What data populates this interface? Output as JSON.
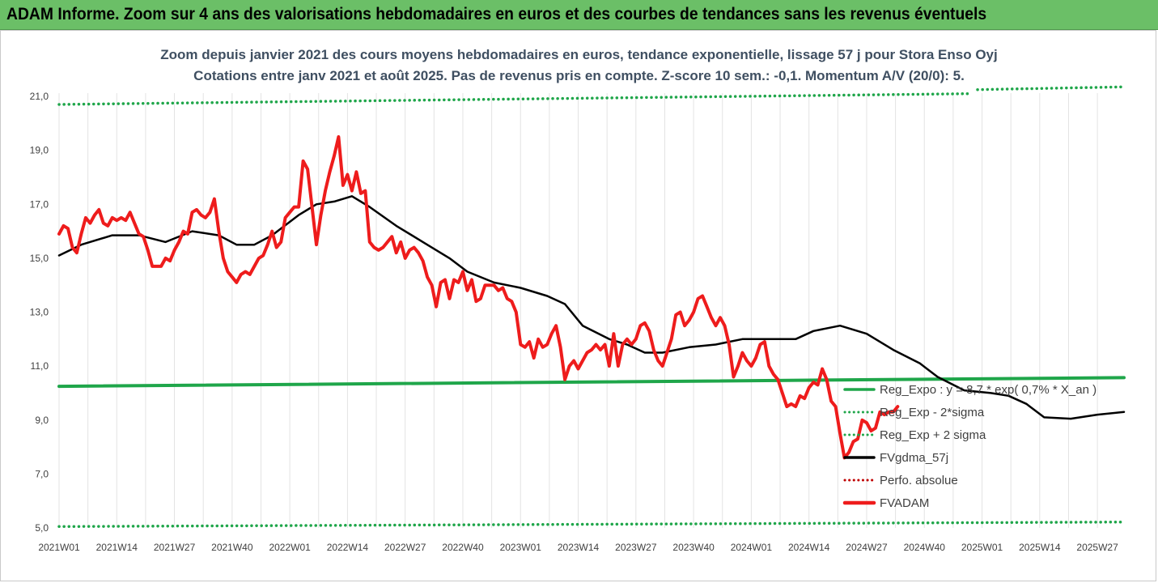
{
  "banner": {
    "title": "ADAM Informe. Zoom sur 4 ans des valorisations hebdomadaires en euros et des courbes de tendances sans les revenus éventuels"
  },
  "chart_data": {
    "type": "line",
    "title": "Zoom depuis janvier 2021 des cours moyens hebdomadaires en euros, tendance exponentielle, lissage 57 j pour Stora Enso Oyj",
    "subtitle": "Cotations entre janv 2021 et août 2025. Pas de revenus pris en compte. Z-score 10 sem.: -0,1. Momentum A/V (20/0): 5.",
    "xlabel": "",
    "ylabel": "",
    "ylim": [
      5,
      21
    ],
    "yticks": [
      "5,0",
      "7,0",
      "9,0",
      "11,0",
      "13,0",
      "15,0",
      "17,0",
      "19,0",
      "21,0"
    ],
    "x_tick_labels": [
      "2021W01",
      "2021W14",
      "2021W27",
      "2021W40",
      "2022W01",
      "2022W14",
      "2022W27",
      "2022W40",
      "2023W01",
      "2023W14",
      "2023W27",
      "2023W40",
      "2024W01",
      "2024W14",
      "2024W27",
      "2024W40",
      "2025W01",
      "2025W14",
      "2025W27"
    ],
    "x_tick_index": [
      0,
      13,
      26,
      39,
      52,
      65,
      78,
      91,
      104,
      117,
      130,
      143,
      156,
      169,
      182,
      195,
      208,
      221,
      234
    ],
    "n_points": 241,
    "grid": "vertical",
    "legend_position": "bottom-right",
    "series": [
      {
        "name": "Reg_Expo : y = 8,7 * exp( 0,7% * X_an )",
        "style": "solid",
        "color": "#1fa64a",
        "points": [
          [
            0,
            10.25
          ],
          [
            240,
            10.57
          ]
        ]
      },
      {
        "name": "Reg_Exp - 2*sigma",
        "style": "dotted",
        "color": "#1fa64a",
        "points": [
          [
            0,
            5.05
          ],
          [
            240,
            5.22
          ]
        ]
      },
      {
        "name": "Reg_Exp + 2 sigma",
        "style": "dotted",
        "color": "#1fa64a",
        "points": [
          [
            0,
            20.7
          ],
          [
            205,
            21.1
          ],
          [
            206,
            null
          ],
          [
            207,
            21.25
          ],
          [
            240,
            21.35
          ]
        ]
      },
      {
        "name": "FVgdma_57j",
        "style": "solid",
        "color": "#000000",
        "points": [
          [
            0,
            15.1
          ],
          [
            5,
            15.5
          ],
          [
            12,
            15.85
          ],
          [
            18,
            15.85
          ],
          [
            24,
            15.6
          ],
          [
            30,
            16.0
          ],
          [
            36,
            15.85
          ],
          [
            40,
            15.5
          ],
          [
            44,
            15.5
          ],
          [
            48,
            15.85
          ],
          [
            54,
            16.6
          ],
          [
            58,
            17.0
          ],
          [
            62,
            17.1
          ],
          [
            66,
            17.3
          ],
          [
            70,
            16.9
          ],
          [
            76,
            16.2
          ],
          [
            82,
            15.6
          ],
          [
            88,
            15.0
          ],
          [
            92,
            14.5
          ],
          [
            98,
            14.1
          ],
          [
            104,
            13.9
          ],
          [
            110,
            13.6
          ],
          [
            114,
            13.3
          ],
          [
            118,
            12.5
          ],
          [
            124,
            12.0
          ],
          [
            128,
            11.8
          ],
          [
            132,
            11.5
          ],
          [
            136,
            11.5
          ],
          [
            142,
            11.7
          ],
          [
            148,
            11.8
          ],
          [
            154,
            12.0
          ],
          [
            160,
            12.0
          ],
          [
            166,
            12.0
          ],
          [
            170,
            12.3
          ],
          [
            176,
            12.5
          ],
          [
            182,
            12.2
          ],
          [
            188,
            11.6
          ],
          [
            194,
            11.1
          ],
          [
            198,
            10.6
          ],
          [
            204,
            10.1
          ],
          [
            210,
            10.0
          ],
          [
            214,
            9.9
          ],
          [
            218,
            9.6
          ],
          [
            222,
            9.1
          ],
          [
            228,
            9.05
          ],
          [
            234,
            9.2
          ],
          [
            240,
            9.3
          ]
        ]
      },
      {
        "name": "Perfo. absolue",
        "style": "dotted",
        "color": "#c00000",
        "points": []
      },
      {
        "name": "FVADAM",
        "style": "solid",
        "color": "#ee1c1c",
        "points": [
          [
            0,
            15.9
          ],
          [
            1,
            16.2
          ],
          [
            2,
            16.1
          ],
          [
            3,
            15.4
          ],
          [
            4,
            15.2
          ],
          [
            5,
            15.9
          ],
          [
            6,
            16.5
          ],
          [
            7,
            16.3
          ],
          [
            8,
            16.6
          ],
          [
            9,
            16.8
          ],
          [
            10,
            16.3
          ],
          [
            11,
            16.2
          ],
          [
            12,
            16.5
          ],
          [
            13,
            16.4
          ],
          [
            14,
            16.5
          ],
          [
            15,
            16.4
          ],
          [
            16,
            16.7
          ],
          [
            17,
            16.3
          ],
          [
            18,
            15.9
          ],
          [
            19,
            15.8
          ],
          [
            20,
            15.3
          ],
          [
            21,
            14.7
          ],
          [
            22,
            14.7
          ],
          [
            23,
            14.7
          ],
          [
            24,
            15.0
          ],
          [
            25,
            14.9
          ],
          [
            26,
            15.3
          ],
          [
            27,
            15.6
          ],
          [
            28,
            16.0
          ],
          [
            29,
            15.9
          ],
          [
            30,
            16.7
          ],
          [
            31,
            16.8
          ],
          [
            32,
            16.6
          ],
          [
            33,
            16.5
          ],
          [
            34,
            16.7
          ],
          [
            35,
            17.2
          ],
          [
            36,
            16.0
          ],
          [
            37,
            15.0
          ],
          [
            38,
            14.5
          ],
          [
            39,
            14.3
          ],
          [
            40,
            14.1
          ],
          [
            41,
            14.4
          ],
          [
            42,
            14.5
          ],
          [
            43,
            14.4
          ],
          [
            44,
            14.7
          ],
          [
            45,
            15.0
          ],
          [
            46,
            15.1
          ],
          [
            47,
            15.5
          ],
          [
            48,
            16.0
          ],
          [
            49,
            15.4
          ],
          [
            50,
            15.6
          ],
          [
            51,
            16.5
          ],
          [
            52,
            16.7
          ],
          [
            53,
            16.9
          ],
          [
            54,
            16.9
          ],
          [
            55,
            18.6
          ],
          [
            56,
            18.3
          ],
          [
            57,
            16.9
          ],
          [
            58,
            15.5
          ],
          [
            59,
            16.6
          ],
          [
            60,
            17.5
          ],
          [
            61,
            18.2
          ],
          [
            62,
            18.8
          ],
          [
            63,
            19.5
          ],
          [
            64,
            17.7
          ],
          [
            65,
            18.1
          ],
          [
            66,
            17.5
          ],
          [
            67,
            18.2
          ],
          [
            68,
            17.4
          ],
          [
            69,
            17.5
          ],
          [
            70,
            15.6
          ],
          [
            71,
            15.4
          ],
          [
            72,
            15.3
          ],
          [
            73,
            15.4
          ],
          [
            74,
            15.6
          ],
          [
            75,
            15.8
          ],
          [
            76,
            15.2
          ],
          [
            77,
            15.6
          ],
          [
            78,
            15.0
          ],
          [
            79,
            15.3
          ],
          [
            80,
            15.4
          ],
          [
            81,
            15.2
          ],
          [
            82,
            14.9
          ],
          [
            83,
            14.3
          ],
          [
            84,
            14.0
          ],
          [
            85,
            13.2
          ],
          [
            86,
            14.1
          ],
          [
            87,
            14.2
          ],
          [
            88,
            13.5
          ],
          [
            89,
            14.2
          ],
          [
            90,
            14.1
          ],
          [
            91,
            14.5
          ],
          [
            92,
            13.8
          ],
          [
            93,
            14.2
          ],
          [
            94,
            13.4
          ],
          [
            95,
            13.5
          ],
          [
            96,
            14.0
          ],
          [
            97,
            14.0
          ],
          [
            98,
            14.0
          ],
          [
            99,
            13.8
          ],
          [
            100,
            13.9
          ],
          [
            101,
            13.5
          ],
          [
            102,
            13.4
          ],
          [
            103,
            13.0
          ],
          [
            104,
            11.8
          ],
          [
            105,
            11.7
          ],
          [
            106,
            11.9
          ],
          [
            107,
            11.3
          ],
          [
            108,
            12.0
          ],
          [
            109,
            11.7
          ],
          [
            110,
            11.8
          ],
          [
            111,
            12.2
          ],
          [
            112,
            12.5
          ],
          [
            113,
            11.7
          ],
          [
            114,
            10.5
          ],
          [
            115,
            11.0
          ],
          [
            116,
            11.2
          ],
          [
            117,
            10.9
          ],
          [
            118,
            11.2
          ],
          [
            119,
            11.5
          ],
          [
            120,
            11.6
          ],
          [
            121,
            11.8
          ],
          [
            122,
            11.6
          ],
          [
            123,
            11.8
          ],
          [
            124,
            11.0
          ],
          [
            125,
            12.2
          ],
          [
            126,
            11.0
          ],
          [
            127,
            11.8
          ],
          [
            128,
            12.0
          ],
          [
            129,
            11.8
          ],
          [
            130,
            12.0
          ],
          [
            131,
            12.5
          ],
          [
            132,
            12.6
          ],
          [
            133,
            12.3
          ],
          [
            134,
            11.6
          ],
          [
            135,
            11.2
          ],
          [
            136,
            11.0
          ],
          [
            137,
            11.5
          ],
          [
            138,
            12.0
          ],
          [
            139,
            12.9
          ],
          [
            140,
            13.0
          ],
          [
            141,
            12.5
          ],
          [
            142,
            12.7
          ],
          [
            143,
            13.0
          ],
          [
            144,
            13.5
          ],
          [
            145,
            13.6
          ],
          [
            146,
            13.2
          ],
          [
            147,
            12.8
          ],
          [
            148,
            12.5
          ],
          [
            149,
            12.8
          ],
          [
            150,
            12.5
          ],
          [
            151,
            11.8
          ],
          [
            152,
            10.6
          ],
          [
            153,
            11.0
          ],
          [
            154,
            11.5
          ],
          [
            155,
            11.2
          ],
          [
            156,
            11.0
          ],
          [
            157,
            11.3
          ],
          [
            158,
            11.8
          ],
          [
            159,
            11.9
          ],
          [
            160,
            11.0
          ],
          [
            161,
            10.7
          ],
          [
            162,
            10.5
          ],
          [
            163,
            10.0
          ],
          [
            164,
            9.5
          ],
          [
            165,
            9.6
          ],
          [
            166,
            9.5
          ],
          [
            167,
            9.9
          ],
          [
            168,
            9.8
          ],
          [
            169,
            10.2
          ],
          [
            170,
            10.4
          ],
          [
            171,
            10.3
          ],
          [
            172,
            10.9
          ],
          [
            173,
            10.5
          ],
          [
            174,
            9.7
          ],
          [
            175,
            9.5
          ],
          [
            176,
            8.5
          ],
          [
            177,
            7.6
          ],
          [
            178,
            7.8
          ],
          [
            179,
            8.2
          ],
          [
            180,
            8.3
          ],
          [
            181,
            9.0
          ],
          [
            182,
            8.9
          ],
          [
            183,
            8.6
          ],
          [
            184,
            8.7
          ],
          [
            185,
            9.3
          ],
          [
            186,
            9.2
          ],
          [
            187,
            9.3
          ],
          [
            188,
            9.3
          ],
          [
            189,
            9.5
          ]
        ]
      }
    ]
  }
}
